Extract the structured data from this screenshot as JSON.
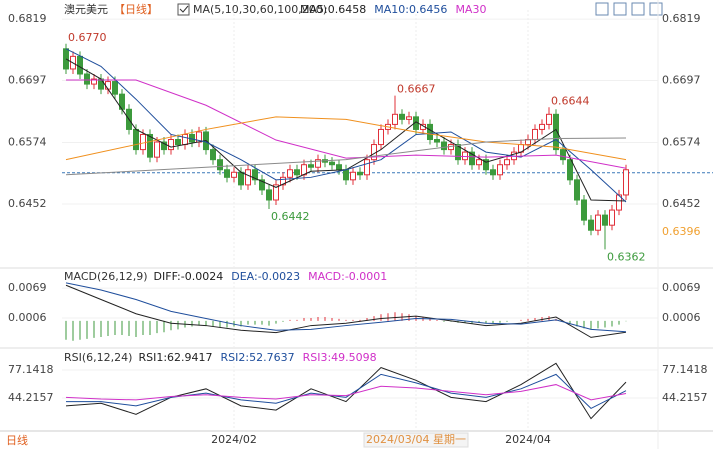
{
  "header": {
    "symbol": "澳元美元",
    "period": "【日线】",
    "ma_params": "MA(5,10,30,60,100,200)"
  },
  "footer_label": "日线",
  "chart_data": [
    {
      "type": "candlestick",
      "categories": [
        null,
        null,
        null,
        null,
        null,
        null,
        null,
        null,
        null,
        null,
        null,
        null,
        null,
        null,
        null,
        null,
        null,
        null,
        null,
        null,
        null,
        null,
        null,
        null,
        "2024/02",
        null,
        null,
        null,
        null,
        null,
        null,
        null,
        null,
        null,
        null,
        null,
        null,
        null,
        null,
        null,
        null,
        null,
        null,
        null,
        null,
        null,
        null,
        null,
        null,
        null,
        "2024/03/04 星期一",
        null,
        null,
        null,
        null,
        null,
        null,
        null,
        null,
        null,
        null,
        null,
        null,
        null,
        null,
        null,
        "2024/04",
        null,
        null,
        null,
        null,
        null,
        null,
        null,
        null,
        null,
        null,
        null,
        null,
        null,
        null
      ],
      "open": [
        0.676,
        0.672,
        0.6745,
        0.671,
        0.669,
        0.67,
        0.668,
        0.6695,
        0.667,
        0.664,
        0.66,
        0.656,
        0.659,
        0.6545,
        0.6575,
        0.656,
        0.658,
        0.657,
        0.659,
        0.6575,
        0.6595,
        0.656,
        0.654,
        0.652,
        0.6505,
        0.6515,
        0.649,
        0.652,
        0.65,
        0.648,
        0.646,
        0.649,
        0.6505,
        0.652,
        0.651,
        0.653,
        0.6525,
        0.654,
        0.6535,
        0.653,
        0.652,
        0.65,
        0.6515,
        0.651,
        0.654,
        0.657,
        0.66,
        0.661,
        0.663,
        0.662,
        0.6625,
        0.66,
        0.661,
        0.658,
        0.6575,
        0.656,
        0.657,
        0.654,
        0.6555,
        0.653,
        0.654,
        0.652,
        0.651,
        0.653,
        0.654,
        0.6555,
        0.657,
        0.658,
        0.66,
        0.661,
        0.663,
        0.656,
        0.654,
        0.65,
        0.646,
        0.642,
        0.64,
        0.643,
        0.641,
        0.644,
        0.647
      ],
      "high": [
        0.677,
        0.6755,
        0.6755,
        0.672,
        0.671,
        0.671,
        0.6705,
        0.6705,
        0.668,
        0.665,
        0.661,
        0.66,
        0.66,
        0.6585,
        0.6585,
        0.659,
        0.659,
        0.66,
        0.66,
        0.6605,
        0.6605,
        0.657,
        0.655,
        0.653,
        0.6525,
        0.6525,
        0.653,
        0.653,
        0.651,
        0.649,
        0.65,
        0.6515,
        0.653,
        0.653,
        0.654,
        0.654,
        0.655,
        0.655,
        0.6545,
        0.654,
        0.653,
        0.6525,
        0.6525,
        0.655,
        0.658,
        0.661,
        0.662,
        0.6667,
        0.664,
        0.6635,
        0.6635,
        0.662,
        0.662,
        0.659,
        0.6585,
        0.658,
        0.658,
        0.6565,
        0.6565,
        0.655,
        0.655,
        0.653,
        0.654,
        0.655,
        0.6565,
        0.658,
        0.659,
        0.661,
        0.662,
        0.6644,
        0.664,
        0.657,
        0.655,
        0.651,
        0.647,
        0.643,
        0.644,
        0.644,
        0.645,
        0.648,
        0.653
      ],
      "low": [
        0.671,
        0.671,
        0.67,
        0.668,
        0.668,
        0.667,
        0.667,
        0.666,
        0.663,
        0.659,
        0.655,
        0.655,
        0.6535,
        0.6535,
        0.655,
        0.655,
        0.656,
        0.656,
        0.6565,
        0.6565,
        0.655,
        0.653,
        0.651,
        0.6495,
        0.6495,
        0.648,
        0.648,
        0.649,
        0.647,
        0.6442,
        0.645,
        0.648,
        0.6495,
        0.65,
        0.65,
        0.6515,
        0.6515,
        0.6525,
        0.652,
        0.651,
        0.649,
        0.649,
        0.65,
        0.65,
        0.653,
        0.656,
        0.659,
        0.66,
        0.661,
        0.661,
        0.659,
        0.659,
        0.657,
        0.6565,
        0.655,
        0.655,
        0.653,
        0.653,
        0.652,
        0.652,
        0.651,
        0.65,
        0.65,
        0.652,
        0.653,
        0.6545,
        0.656,
        0.657,
        0.659,
        0.66,
        0.655,
        0.653,
        0.649,
        0.645,
        0.641,
        0.639,
        0.639,
        0.6362,
        0.64,
        0.643,
        0.646
      ],
      "close": [
        0.672,
        0.6745,
        0.671,
        0.669,
        0.67,
        0.668,
        0.6695,
        0.667,
        0.664,
        0.66,
        0.656,
        0.659,
        0.6545,
        0.6575,
        0.656,
        0.658,
        0.657,
        0.659,
        0.6575,
        0.6595,
        0.656,
        0.654,
        0.652,
        0.6505,
        0.6515,
        0.649,
        0.652,
        0.65,
        0.648,
        0.646,
        0.649,
        0.6505,
        0.652,
        0.651,
        0.653,
        0.6525,
        0.654,
        0.6535,
        0.653,
        0.652,
        0.65,
        0.6515,
        0.651,
        0.654,
        0.657,
        0.66,
        0.661,
        0.663,
        0.662,
        0.6625,
        0.66,
        0.661,
        0.658,
        0.6575,
        0.656,
        0.657,
        0.654,
        0.6555,
        0.653,
        0.654,
        0.652,
        0.651,
        0.653,
        0.654,
        0.6555,
        0.657,
        0.658,
        0.66,
        0.661,
        0.663,
        0.656,
        0.654,
        0.65,
        0.646,
        0.642,
        0.64,
        0.643,
        0.641,
        0.644,
        0.647,
        0.652
      ],
      "high_labels": [
        "0.6770",
        null,
        null,
        null,
        null,
        null,
        null,
        null,
        null,
        null,
        null,
        null,
        null,
        null,
        null,
        null,
        null,
        null,
        null,
        null,
        null,
        null,
        null,
        null,
        null,
        null,
        null,
        null,
        null,
        null,
        null,
        null,
        null,
        null,
        null,
        null,
        null,
        null,
        null,
        null,
        null,
        null,
        null,
        null,
        null,
        null,
        null,
        "0.6667",
        null,
        null,
        null,
        null,
        null,
        null,
        null,
        null,
        null,
        null,
        null,
        null,
        null,
        null,
        null,
        null,
        null,
        null,
        null,
        null,
        null,
        "0.6644",
        null,
        null,
        null,
        null,
        null,
        null,
        null,
        null,
        null,
        null,
        null
      ],
      "low_labels": [
        null,
        null,
        null,
        null,
        null,
        null,
        null,
        null,
        null,
        null,
        null,
        null,
        null,
        null,
        null,
        null,
        null,
        null,
        null,
        null,
        null,
        null,
        null,
        null,
        null,
        null,
        null,
        null,
        null,
        "0.6442",
        null,
        null,
        null,
        null,
        null,
        null,
        null,
        null,
        null,
        null,
        null,
        null,
        null,
        null,
        null,
        null,
        null,
        null,
        null,
        null,
        null,
        null,
        null,
        null,
        null,
        null,
        null,
        null,
        null,
        null,
        null,
        null,
        null,
        null,
        null,
        null,
        null,
        null,
        null,
        null,
        null,
        null,
        null,
        null,
        null,
        null,
        null,
        "0.6362",
        null,
        null,
        null
      ],
      "up_color": "#e0303a",
      "down_color": "#3c9a3c",
      "ylim": [
        0.6331,
        0.6837
      ],
      "yticks": [
        0.6452,
        0.6574,
        0.6697,
        0.6819
      ],
      "price_line": 0.6514,
      "price_marker": 0.6396,
      "marker_color": "#f0a030",
      "series": [
        {
          "name": "MA5:0.6458",
          "color": "#222222",
          "x": [
            0,
            5,
            10,
            15,
            20,
            25,
            30,
            35,
            40,
            45,
            50,
            55,
            60,
            65,
            70,
            75,
            80
          ],
          "values": [
            0.674,
            0.67,
            0.66,
            0.6565,
            0.6578,
            0.6515,
            0.6485,
            0.6517,
            0.652,
            0.656,
            0.6615,
            0.6575,
            0.6535,
            0.6555,
            0.66,
            0.646,
            0.6458
          ]
        },
        {
          "name": "MA10:0.6456",
          "color": "#1f4e9c",
          "x": [
            0,
            5,
            10,
            15,
            20,
            25,
            30,
            35,
            40,
            45,
            50,
            55,
            60,
            65,
            70,
            75,
            80
          ],
          "values": [
            0.676,
            0.6725,
            0.666,
            0.659,
            0.6575,
            0.654,
            0.65,
            0.6505,
            0.652,
            0.654,
            0.659,
            0.6595,
            0.6555,
            0.6545,
            0.658,
            0.652,
            0.6456
          ]
        },
        {
          "name": "MA30",
          "color": "#d030c8",
          "x": [
            0,
            10,
            20,
            30,
            40,
            50,
            60,
            70,
            80
          ],
          "values": [
            0.6698,
            0.6698,
            0.6648,
            0.6579,
            0.6543,
            0.6549,
            0.6545,
            0.6549,
            0.6523
          ]
        },
        {
          "color": "#f0901e",
          "x": [
            0,
            10,
            20,
            30,
            40,
            50,
            60,
            70,
            80
          ],
          "values": [
            0.654,
            0.657,
            0.66,
            0.6625,
            0.662,
            0.6595,
            0.6575,
            0.6565,
            0.654
          ]
        },
        {
          "color": "#8a8a8a",
          "x": [
            0,
            20,
            40,
            60,
            70,
            80
          ],
          "values": [
            0.651,
            0.6525,
            0.654,
            0.6575,
            0.6582,
            0.6583
          ]
        }
      ]
    },
    {
      "type": "macd",
      "title": "MACD(26,12,9)",
      "hist_name": "MACD:-0.0001",
      "hist_name_color": "#d030c8",
      "values": [
        -0.004,
        -0.0042,
        -0.004,
        -0.0038,
        -0.0036,
        -0.0034,
        -0.0032,
        -0.003,
        -0.003,
        -0.0032,
        -0.0034,
        -0.003,
        -0.003,
        -0.0026,
        -0.0024,
        -0.002,
        -0.0018,
        -0.0014,
        -0.0012,
        -0.001,
        -0.001,
        -0.0012,
        -0.0014,
        -0.0014,
        -0.0012,
        -0.0012,
        -0.0008,
        -0.0008,
        -0.0008,
        -0.001,
        -0.0006,
        -0.0002,
        0.0002,
        0.0002,
        0.0006,
        0.0006,
        0.0008,
        0.0008,
        0.0006,
        0.0004,
        0.0002,
        0.0002,
        0.0002,
        0.0006,
        0.001,
        0.0014,
        0.0016,
        0.0018,
        0.0016,
        0.0014,
        0.001,
        0.0008,
        0.0004,
        0.0002,
        -0.0002,
        -0.0002,
        -0.0004,
        -0.0004,
        -0.0006,
        -0.0004,
        -0.0006,
        -0.0006,
        -0.0004,
        -0.0002,
        0.0,
        0.0002,
        0.0004,
        0.0006,
        0.0008,
        0.001,
        0.0004,
        0.0,
        -0.0006,
        -0.0012,
        -0.0016,
        -0.0018,
        -0.0016,
        -0.0014,
        -0.0012,
        -0.0008,
        -0.0001
      ],
      "up_color": "#e0303a",
      "down_color": "#3c9a3c",
      "ylim": [
        -0.0051,
        0.0103
      ],
      "yticks": [
        0.0006,
        0.0069
      ],
      "series": [
        {
          "name": "DIFF:-0.0024",
          "color": "#222222",
          "x": [
            0,
            5,
            10,
            15,
            20,
            25,
            30,
            35,
            40,
            45,
            50,
            55,
            60,
            65,
            70,
            75,
            80
          ],
          "values": [
            0.0075,
            0.0045,
            0.0015,
            -0.0005,
            -0.001,
            -0.002,
            -0.0025,
            -0.001,
            -0.0005,
            0.0005,
            0.001,
            0.0,
            -0.001,
            -0.0005,
            0.0008,
            -0.0035,
            -0.0024
          ]
        },
        {
          "name": "DEA:-0.0023",
          "color": "#1f4e9c",
          "x": [
            0,
            5,
            10,
            15,
            20,
            25,
            30,
            35,
            40,
            45,
            50,
            55,
            60,
            65,
            70,
            75,
            80
          ],
          "values": [
            0.008,
            0.0065,
            0.0045,
            0.002,
            0.0005,
            -0.001,
            -0.002,
            -0.0018,
            -0.001,
            -0.0003,
            0.0005,
            0.0003,
            -0.0005,
            -0.0007,
            0.0002,
            -0.0018,
            -0.0023
          ]
        }
      ]
    },
    {
      "type": "line",
      "title": "RSI(6,12,24)",
      "ylim": [
        6.6,
        98.3
      ],
      "yticks": [
        44.2157,
        77.1418
      ],
      "series": [
        {
          "name": "RSI1:62.9417",
          "color": "#222222",
          "x": [
            0,
            5,
            10,
            15,
            20,
            25,
            30,
            35,
            40,
            45,
            50,
            55,
            60,
            65,
            70,
            75,
            80
          ],
          "values": [
            35,
            38,
            25,
            45,
            55,
            35,
            30,
            55,
            40,
            80,
            65,
            45,
            40,
            60,
            85,
            20,
            62.9
          ]
        },
        {
          "name": "RSI2:52.7637",
          "color": "#1f4e9c",
          "x": [
            0,
            5,
            10,
            15,
            20,
            25,
            30,
            35,
            40,
            45,
            50,
            55,
            60,
            65,
            70,
            75,
            80
          ],
          "values": [
            40,
            40,
            35,
            45,
            50,
            42,
            38,
            50,
            45,
            72,
            62,
            50,
            45,
            55,
            72,
            32,
            52.8
          ]
        },
        {
          "name": "RSI3:49.5098",
          "color": "#d030c8",
          "x": [
            0,
            5,
            10,
            15,
            20,
            25,
            30,
            35,
            40,
            45,
            50,
            55,
            60,
            65,
            70,
            75,
            80
          ],
          "values": [
            45,
            43,
            42,
            46,
            48,
            45,
            43,
            48,
            47,
            58,
            56,
            52,
            48,
            52,
            60,
            42,
            49.5
          ]
        }
      ]
    }
  ]
}
